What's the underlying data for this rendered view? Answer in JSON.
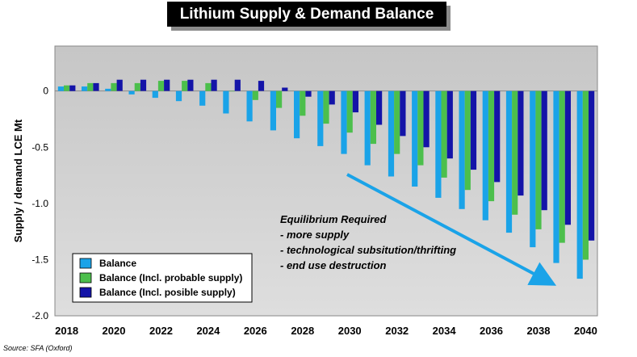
{
  "chart_data": {
    "type": "bar",
    "title": "Lithium Supply & Demand Balance",
    "ylabel": "Supply / demand LCE Mt",
    "xlabel": "",
    "ylim": [
      -2.0,
      0.4
    ],
    "yticks": [
      0,
      -0.5,
      -1.0,
      -1.5,
      -2.0
    ],
    "ytick_labels": [
      "0",
      "-0.5",
      "-1.0",
      "-1.5",
      "-2.0"
    ],
    "categories": [
      2018,
      2019,
      2020,
      2021,
      2022,
      2023,
      2024,
      2025,
      2026,
      2027,
      2028,
      2029,
      2030,
      2031,
      2032,
      2033,
      2034,
      2035,
      2036,
      2037,
      2038,
      2039,
      2040
    ],
    "xtick_labels": [
      "2018",
      "2020",
      "2022",
      "2024",
      "2026",
      "2028",
      "2030",
      "2032",
      "2034",
      "2036",
      "2038",
      "2040"
    ],
    "grid": false,
    "legend_position": "bottom-left",
    "series": [
      {
        "name": "Balance",
        "color": "#1aa3e8",
        "values": [
          0.04,
          0.04,
          0.02,
          -0.03,
          -0.06,
          -0.09,
          -0.13,
          -0.2,
          -0.27,
          -0.35,
          -0.42,
          -0.49,
          -0.56,
          -0.66,
          -0.76,
          -0.85,
          -0.95,
          -1.05,
          -1.15,
          -1.26,
          -1.39,
          -1.53,
          -1.67
        ]
      },
      {
        "name": "Balance (Incl. probable supply)",
        "color": "#4cbf4c",
        "values": [
          0.05,
          0.07,
          0.07,
          0.07,
          0.09,
          0.09,
          0.07,
          0.0,
          -0.08,
          -0.15,
          -0.22,
          -0.29,
          -0.37,
          -0.47,
          -0.56,
          -0.66,
          -0.77,
          -0.88,
          -0.98,
          -1.1,
          -1.23,
          -1.35,
          -1.5
        ]
      },
      {
        "name": "Balance (Incl. posible supply)",
        "color": "#1414a8",
        "values": [
          0.05,
          0.07,
          0.1,
          0.1,
          0.1,
          0.1,
          0.1,
          0.1,
          0.09,
          0.03,
          -0.05,
          -0.12,
          -0.19,
          -0.3,
          -0.4,
          -0.5,
          -0.6,
          -0.7,
          -0.81,
          -0.93,
          -1.06,
          -1.19,
          -1.33
        ]
      }
    ],
    "annotation_lines": [
      "Equilibrium Required",
      "- more supply",
      "- technological subsitution/thrifting",
      "- end use destruction"
    ],
    "arrow_color": "#1aa3e8"
  },
  "source": "Source: SFA (Oxford)"
}
